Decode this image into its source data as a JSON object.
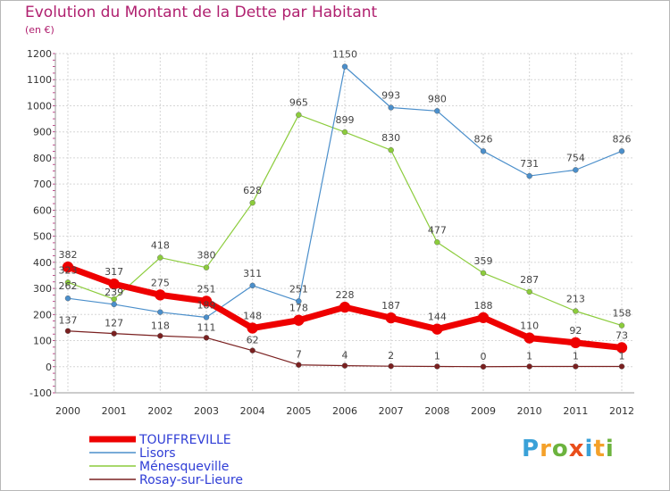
{
  "title": "Evolution du Montant de la Dette par Habitant",
  "subtitle": "(en €)",
  "logo": {
    "letters": [
      "P",
      "r",
      "o",
      "x",
      "i",
      "t",
      "i"
    ],
    "colors": [
      "#3aa1d8",
      "#f4a12a",
      "#6cb33e",
      "#e94e1b",
      "#3aa1d8",
      "#f4a12a",
      "#6cb33e"
    ]
  },
  "chart_data": {
    "type": "line",
    "title": "Evolution du Montant de la Dette par Habitant",
    "ylabel": "(en €)",
    "x": [
      2000,
      2001,
      2002,
      2003,
      2004,
      2005,
      2006,
      2007,
      2008,
      2009,
      2010,
      2011,
      2012
    ],
    "ylim": [
      -100,
      1200
    ],
    "yticks": [
      -100,
      0,
      100,
      200,
      300,
      400,
      500,
      600,
      700,
      800,
      900,
      1000,
      1100,
      1200
    ],
    "grid": true,
    "legend_position": "bottom-left",
    "series": [
      {
        "name": "TOUFFREVILLE",
        "color": "#ee0000",
        "values": [
          382,
          317,
          275,
          251,
          148,
          178,
          228,
          187,
          144,
          188,
          110,
          92,
          73
        ]
      },
      {
        "name": "Lisors",
        "color": "#4b8fcb",
        "values": [
          262,
          239,
          209,
          189,
          311,
          251,
          1150,
          993,
          980,
          826,
          731,
          754,
          826
        ]
      },
      {
        "name": "Ménesqueville",
        "color": "#8ccc3c",
        "values": [
          323,
          259,
          418,
          380,
          628,
          965,
          899,
          830,
          477,
          359,
          287,
          213,
          158
        ]
      },
      {
        "name": "Rosay-sur-Lieure",
        "color": "#7a2020",
        "values": [
          137,
          127,
          118,
          111,
          62,
          7,
          4,
          2,
          1,
          0,
          1,
          1,
          1
        ]
      }
    ],
    "data_labels": {
      "TOUFFREVILLE": [
        "382",
        "317",
        "275",
        "251",
        "148",
        "178",
        "228",
        "187",
        "144",
        "188",
        "110",
        "92",
        "73"
      ],
      "Lisors": [
        "262",
        "239",
        "",
        "189",
        "311",
        "251",
        "1150",
        "993",
        "980",
        "826",
        "731",
        "754",
        "826"
      ],
      "Ménesqueville": [
        "323",
        "",
        "418",
        "380",
        "628",
        "965",
        "899",
        "830",
        "477",
        "359",
        "287",
        "213",
        "158"
      ],
      "Rosay-sur-Lieure": [
        "137",
        "127",
        "118",
        "111",
        "62",
        "7",
        "4",
        "2",
        "1",
        "0",
        "1",
        "1",
        "1"
      ]
    }
  }
}
